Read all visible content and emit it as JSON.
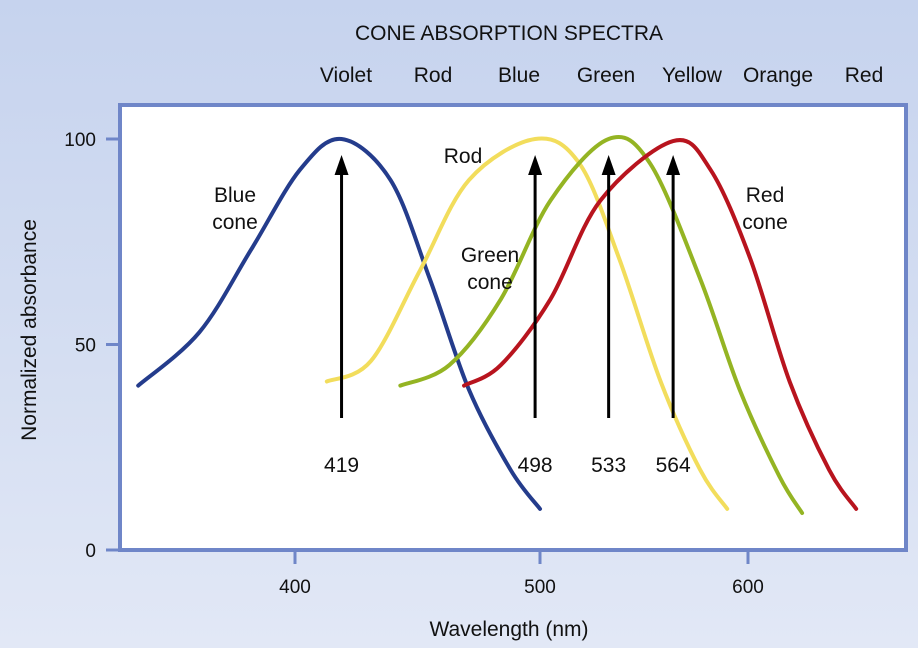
{
  "chart_data": {
    "type": "line",
    "title": "CONE ABSORPTION SPECTRA",
    "xlabel": "Wavelength (nm)",
    "ylabel": "Normalized absorbance",
    "xticks": [
      400,
      500,
      600
    ],
    "yticks": [
      0,
      50,
      100
    ],
    "ylim": [
      0,
      100
    ],
    "grid": false,
    "spectrum_labels": [
      "Violet",
      "Rod",
      "Blue",
      "Green",
      "Yellow",
      "Orange",
      "Red"
    ],
    "series": [
      {
        "name": "Blue cone",
        "label_lines": [
          "Blue",
          "cone"
        ],
        "color": "#243c8c",
        "peak": 419,
        "points": [
          [
            336,
            40
          ],
          [
            361,
            53
          ],
          [
            382,
            73
          ],
          [
            402,
            92.5
          ],
          [
            419,
            100
          ],
          [
            439,
            90
          ],
          [
            455,
            66
          ],
          [
            471,
            39
          ],
          [
            488,
            19.5
          ],
          [
            500,
            10
          ]
        ]
      },
      {
        "name": "Rod",
        "label_lines": [
          "Rod"
        ],
        "color": "#f2dd5c",
        "peak": 498,
        "points": [
          [
            413,
            41
          ],
          [
            431,
            46
          ],
          [
            451,
            68
          ],
          [
            471,
            90
          ],
          [
            498,
            100
          ],
          [
            519,
            94
          ],
          [
            538,
            71
          ],
          [
            558,
            41
          ],
          [
            577,
            19.5
          ],
          [
            590,
            10
          ]
        ]
      },
      {
        "name": "Green cone",
        "label_lines": [
          "Green",
          "cone"
        ],
        "color": "#94b423",
        "peak": 533,
        "points": [
          [
            443,
            40
          ],
          [
            463,
            45
          ],
          [
            484,
            61
          ],
          [
            505,
            85
          ],
          [
            533,
            100
          ],
          [
            553,
            94
          ],
          [
            577,
            66
          ],
          [
            596,
            39
          ],
          [
            615,
            18
          ],
          [
            626,
            9
          ]
        ]
      },
      {
        "name": "Red cone",
        "label_lines": [
          "Red",
          "cone"
        ],
        "color": "#b8141e",
        "peak": 564,
        "points": [
          [
            469,
            40
          ],
          [
            484,
            45
          ],
          [
            505,
            61
          ],
          [
            529,
            85
          ],
          [
            564,
            99.5
          ],
          [
            582,
            92.5
          ],
          [
            601,
            71
          ],
          [
            620,
            41
          ],
          [
            639,
            19.5
          ],
          [
            652,
            10
          ]
        ]
      }
    ],
    "peak_labels": [
      "419",
      "498",
      "533",
      "564"
    ]
  }
}
